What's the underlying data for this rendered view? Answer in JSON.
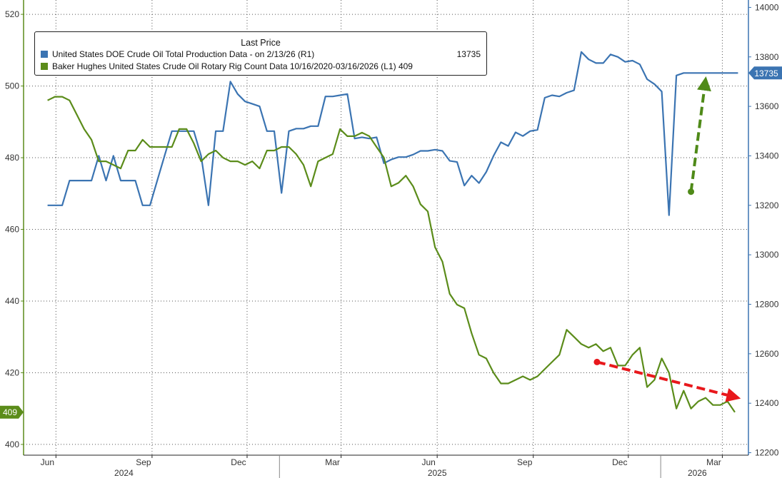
{
  "legend": {
    "title": "Last Price",
    "rows": [
      {
        "label": "United States DOE Crude Oil Total Production Data -  on 2/13/26  (R1)",
        "value": "13735",
        "color": "#3b74b2"
      },
      {
        "label": "Baker Hughes United States Crude Oil Rotary Rig Count Data 10/16/2020-03/16/2026  (L1) 409",
        "value": "",
        "color": "#5b8c1a"
      }
    ]
  },
  "chart_data": {
    "type": "line",
    "left_axis": {
      "ticks": [
        400,
        420,
        440,
        460,
        480,
        500,
        520
      ],
      "range": [
        397,
        524
      ]
    },
    "right_axis": {
      "ticks": [
        12200,
        12400,
        12600,
        12800,
        13000,
        13200,
        13400,
        13600,
        13800,
        14000
      ],
      "range": [
        12190,
        14030
      ]
    },
    "x_month_labels": [
      "Jun",
      "Sep",
      "Dec",
      "Mar",
      "Jun",
      "Sep",
      "Dec",
      "Mar"
    ],
    "x_year_labels": [
      "2024",
      "2025",
      "2026"
    ],
    "last_value_labels": {
      "left": "409",
      "right": "13735"
    },
    "series": [
      {
        "name": "United States DOE Crude Oil Total Production Data",
        "axis": "right",
        "color": "#3b74b2",
        "x": [
          "2024-05-24",
          "2024-05-31",
          "2024-06-07",
          "2024-06-14",
          "2024-06-21",
          "2024-06-28",
          "2024-07-05",
          "2024-07-12",
          "2024-07-19",
          "2024-07-26",
          "2024-08-02",
          "2024-08-09",
          "2024-08-16",
          "2024-08-23",
          "2024-08-30",
          "2024-09-06",
          "2024-09-13",
          "2024-09-20",
          "2024-09-27",
          "2024-10-04",
          "2024-10-11",
          "2024-10-18",
          "2024-10-25",
          "2024-11-01",
          "2024-11-08",
          "2024-11-15",
          "2024-11-22",
          "2024-11-29",
          "2024-12-06",
          "2024-12-13",
          "2024-12-20",
          "2024-12-27",
          "2025-01-03",
          "2025-01-10",
          "2025-01-17",
          "2025-01-24",
          "2025-01-31",
          "2025-02-07",
          "2025-02-14",
          "2025-02-21",
          "2025-02-28",
          "2025-03-07",
          "2025-03-14",
          "2025-03-21",
          "2025-03-28",
          "2025-04-04",
          "2025-04-11",
          "2025-04-18",
          "2025-04-25",
          "2025-05-02",
          "2025-05-09",
          "2025-05-16",
          "2025-05-23",
          "2025-05-30",
          "2025-06-06",
          "2025-06-13",
          "2025-06-20",
          "2025-06-27",
          "2025-07-04",
          "2025-07-11",
          "2025-07-18",
          "2025-07-25",
          "2025-08-01",
          "2025-08-08",
          "2025-08-15",
          "2025-08-22",
          "2025-08-29",
          "2025-09-05",
          "2025-09-12",
          "2025-09-19",
          "2025-09-26",
          "2025-10-03",
          "2025-10-10",
          "2025-10-17",
          "2025-10-24",
          "2025-10-31",
          "2025-11-07",
          "2025-11-14",
          "2025-11-21",
          "2025-11-28",
          "2025-12-05",
          "2025-12-12",
          "2025-12-19",
          "2025-12-26",
          "2026-01-02",
          "2026-01-09",
          "2026-01-16",
          "2026-01-23",
          "2026-01-30",
          "2026-02-06",
          "2026-02-13",
          "2026-03-16"
        ],
        "values": [
          13200,
          13200,
          13200,
          13300,
          13300,
          13300,
          13300,
          13400,
          13300,
          13400,
          13300,
          13300,
          13300,
          13200,
          13200,
          13300,
          13400,
          13500,
          13500,
          13500,
          13500,
          13400,
          13200,
          13500,
          13500,
          13700,
          13650,
          13620,
          13610,
          13600,
          13500,
          13500,
          13250,
          13500,
          13510,
          13510,
          13520,
          13520,
          13640,
          13640,
          13645,
          13650,
          13470,
          13475,
          13470,
          13475,
          13370,
          13385,
          13395,
          13395,
          13405,
          13420,
          13420,
          13425,
          13420,
          13380,
          13375,
          13280,
          13320,
          13290,
          13335,
          13400,
          13455,
          13440,
          13495,
          13480,
          13500,
          13505,
          13635,
          13645,
          13640,
          13655,
          13665,
          13820,
          13790,
          13775,
          13775,
          13810,
          13800,
          13780,
          13785,
          13770,
          13710,
          13690,
          13660,
          13160,
          13725,
          13735,
          13735,
          13735,
          13735,
          13735
        ]
      },
      {
        "name": "Baker Hughes United States Crude Oil Rotary Rig Count Data",
        "axis": "left",
        "color": "#5b8c1a",
        "x": [
          "2024-05-24",
          "2024-05-31",
          "2024-06-07",
          "2024-06-14",
          "2024-06-21",
          "2024-06-28",
          "2024-07-05",
          "2024-07-12",
          "2024-07-19",
          "2024-07-26",
          "2024-08-02",
          "2024-08-09",
          "2024-08-16",
          "2024-08-23",
          "2024-08-30",
          "2024-09-06",
          "2024-09-13",
          "2024-09-20",
          "2024-09-27",
          "2024-10-04",
          "2024-10-11",
          "2024-10-18",
          "2024-10-25",
          "2024-11-01",
          "2024-11-08",
          "2024-11-15",
          "2024-11-22",
          "2024-11-29",
          "2024-12-06",
          "2024-12-13",
          "2024-12-20",
          "2024-12-27",
          "2025-01-03",
          "2025-01-10",
          "2025-01-17",
          "2025-01-24",
          "2025-01-31",
          "2025-02-07",
          "2025-02-14",
          "2025-02-21",
          "2025-02-28",
          "2025-03-07",
          "2025-03-14",
          "2025-03-21",
          "2025-03-28",
          "2025-04-04",
          "2025-04-11",
          "2025-04-18",
          "2025-04-25",
          "2025-05-02",
          "2025-05-09",
          "2025-05-16",
          "2025-05-23",
          "2025-05-30",
          "2025-06-06",
          "2025-06-13",
          "2025-06-20",
          "2025-06-27",
          "2025-07-04",
          "2025-07-11",
          "2025-07-18",
          "2025-07-25",
          "2025-08-01",
          "2025-08-08",
          "2025-08-15",
          "2025-08-22",
          "2025-08-29",
          "2025-09-05",
          "2025-09-12",
          "2025-09-19",
          "2025-09-26",
          "2025-10-03",
          "2025-10-10",
          "2025-10-17",
          "2025-10-24",
          "2025-10-31",
          "2025-11-07",
          "2025-11-14",
          "2025-11-21",
          "2025-11-28",
          "2025-12-05",
          "2025-12-12",
          "2025-12-19",
          "2025-12-26",
          "2026-01-02",
          "2026-01-09",
          "2026-01-16",
          "2026-01-23",
          "2026-01-30",
          "2026-02-06",
          "2026-02-13",
          "2026-02-20",
          "2026-02-27",
          "2026-03-06",
          "2026-03-13"
        ],
        "values": [
          496,
          497,
          497,
          496,
          492,
          488,
          485,
          479,
          479,
          478,
          477,
          482,
          482,
          485,
          483,
          483,
          483,
          483,
          488,
          488,
          484,
          479,
          481,
          482,
          480,
          479,
          479,
          478,
          479,
          477,
          482,
          482,
          483,
          483,
          481,
          478,
          472,
          479,
          480,
          481,
          488,
          486,
          486,
          487,
          486,
          483,
          480,
          472,
          473,
          475,
          472,
          467,
          465,
          455,
          451,
          442,
          439,
          438,
          431,
          425,
          424,
          420,
          417,
          417,
          418,
          419,
          418,
          419,
          421,
          423,
          425,
          432,
          430,
          428,
          427,
          428,
          426,
          427,
          422,
          422,
          425,
          427,
          416,
          418,
          424,
          420,
          410,
          415,
          410,
          412,
          413,
          411,
          411,
          412,
          409
        ]
      }
    ],
    "annotations": [
      {
        "type": "arrow",
        "color": "#e8181c",
        "from": {
          "x": "2025-11-01",
          "y": 423
        },
        "to": {
          "x": "2026-03-16",
          "y": 413
        },
        "axis": "left"
      },
      {
        "type": "arrow",
        "color": "#4f8a18",
        "from": {
          "x": "2026-01-30",
          "y": 13255
        },
        "to": {
          "x": "2026-02-13",
          "y": 13710
        },
        "axis": "right"
      }
    ]
  }
}
